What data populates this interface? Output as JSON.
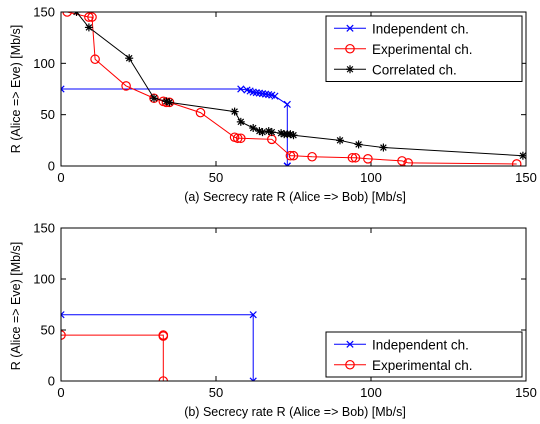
{
  "chart_data": [
    {
      "type": "line",
      "xlabel": "(a) Secrecy rate R (Alice => Bob) [Mb/s]",
      "ylabel": "R (Alice => Eve) [Mb/s]",
      "xlim": [
        0,
        150
      ],
      "ylim": [
        0,
        150
      ],
      "xticks": [
        0,
        50,
        100,
        150
      ],
      "yticks": [
        0,
        50,
        100,
        150
      ],
      "grid": false,
      "legend": "top-right",
      "series": [
        {
          "name": "Independent ch.",
          "color": "#0000ff",
          "marker": "x",
          "x": [
            0,
            58,
            60,
            61,
            62,
            63,
            64,
            65,
            66,
            67,
            68,
            69,
            73,
            73,
            73,
            73
          ],
          "y": [
            75,
            75,
            74,
            73,
            72,
            71.5,
            71,
            70.5,
            70,
            69.5,
            69,
            68,
            60,
            0,
            0,
            0
          ]
        },
        {
          "name": "Experimental ch.",
          "color": "#ff0000",
          "marker": "o",
          "x": [
            2,
            9,
            10,
            11,
            21,
            30,
            33,
            34,
            35,
            45,
            56,
            57,
            58,
            68,
            74,
            75,
            81,
            94,
            95,
            99,
            110,
            112,
            147
          ],
          "y": [
            150,
            145,
            145,
            104,
            78,
            66,
            63,
            62,
            62,
            52,
            28,
            27,
            27,
            26,
            10,
            10,
            9,
            8,
            8,
            7,
            5,
            3,
            2
          ]
        },
        {
          "name": "Correlated ch.",
          "color": "#000000",
          "marker": "*",
          "x": [
            5,
            9,
            22,
            30,
            34,
            35,
            56,
            58,
            62,
            64,
            65,
            67,
            68,
            71,
            72,
            73,
            74,
            75,
            90,
            96,
            104,
            149
          ],
          "y": [
            150,
            135,
            105,
            66,
            63,
            62,
            53,
            43,
            37,
            34,
            33,
            34,
            33,
            32,
            31,
            31,
            31,
            30,
            25,
            21,
            18,
            10
          ]
        }
      ]
    },
    {
      "type": "line",
      "xlabel": "(b) Secrecy rate R (Alice => Bob) [Mb/s]",
      "ylabel": "R (Alice => Eve) [Mb/s]",
      "xlim": [
        0,
        150
      ],
      "ylim": [
        0,
        150
      ],
      "xticks": [
        0,
        50,
        100,
        150
      ],
      "yticks": [
        0,
        50,
        100,
        150
      ],
      "grid": false,
      "legend": "bottom-right",
      "series": [
        {
          "name": "Independent ch.",
          "color": "#0000ff",
          "marker": "x",
          "x": [
            0,
            62,
            62
          ],
          "y": [
            65,
            65,
            0
          ]
        },
        {
          "name": "Experimental ch.",
          "color": "#ff0000",
          "marker": "o",
          "x": [
            0,
            33,
            33,
            33
          ],
          "y": [
            45,
            45,
            44,
            0
          ]
        }
      ]
    }
  ]
}
